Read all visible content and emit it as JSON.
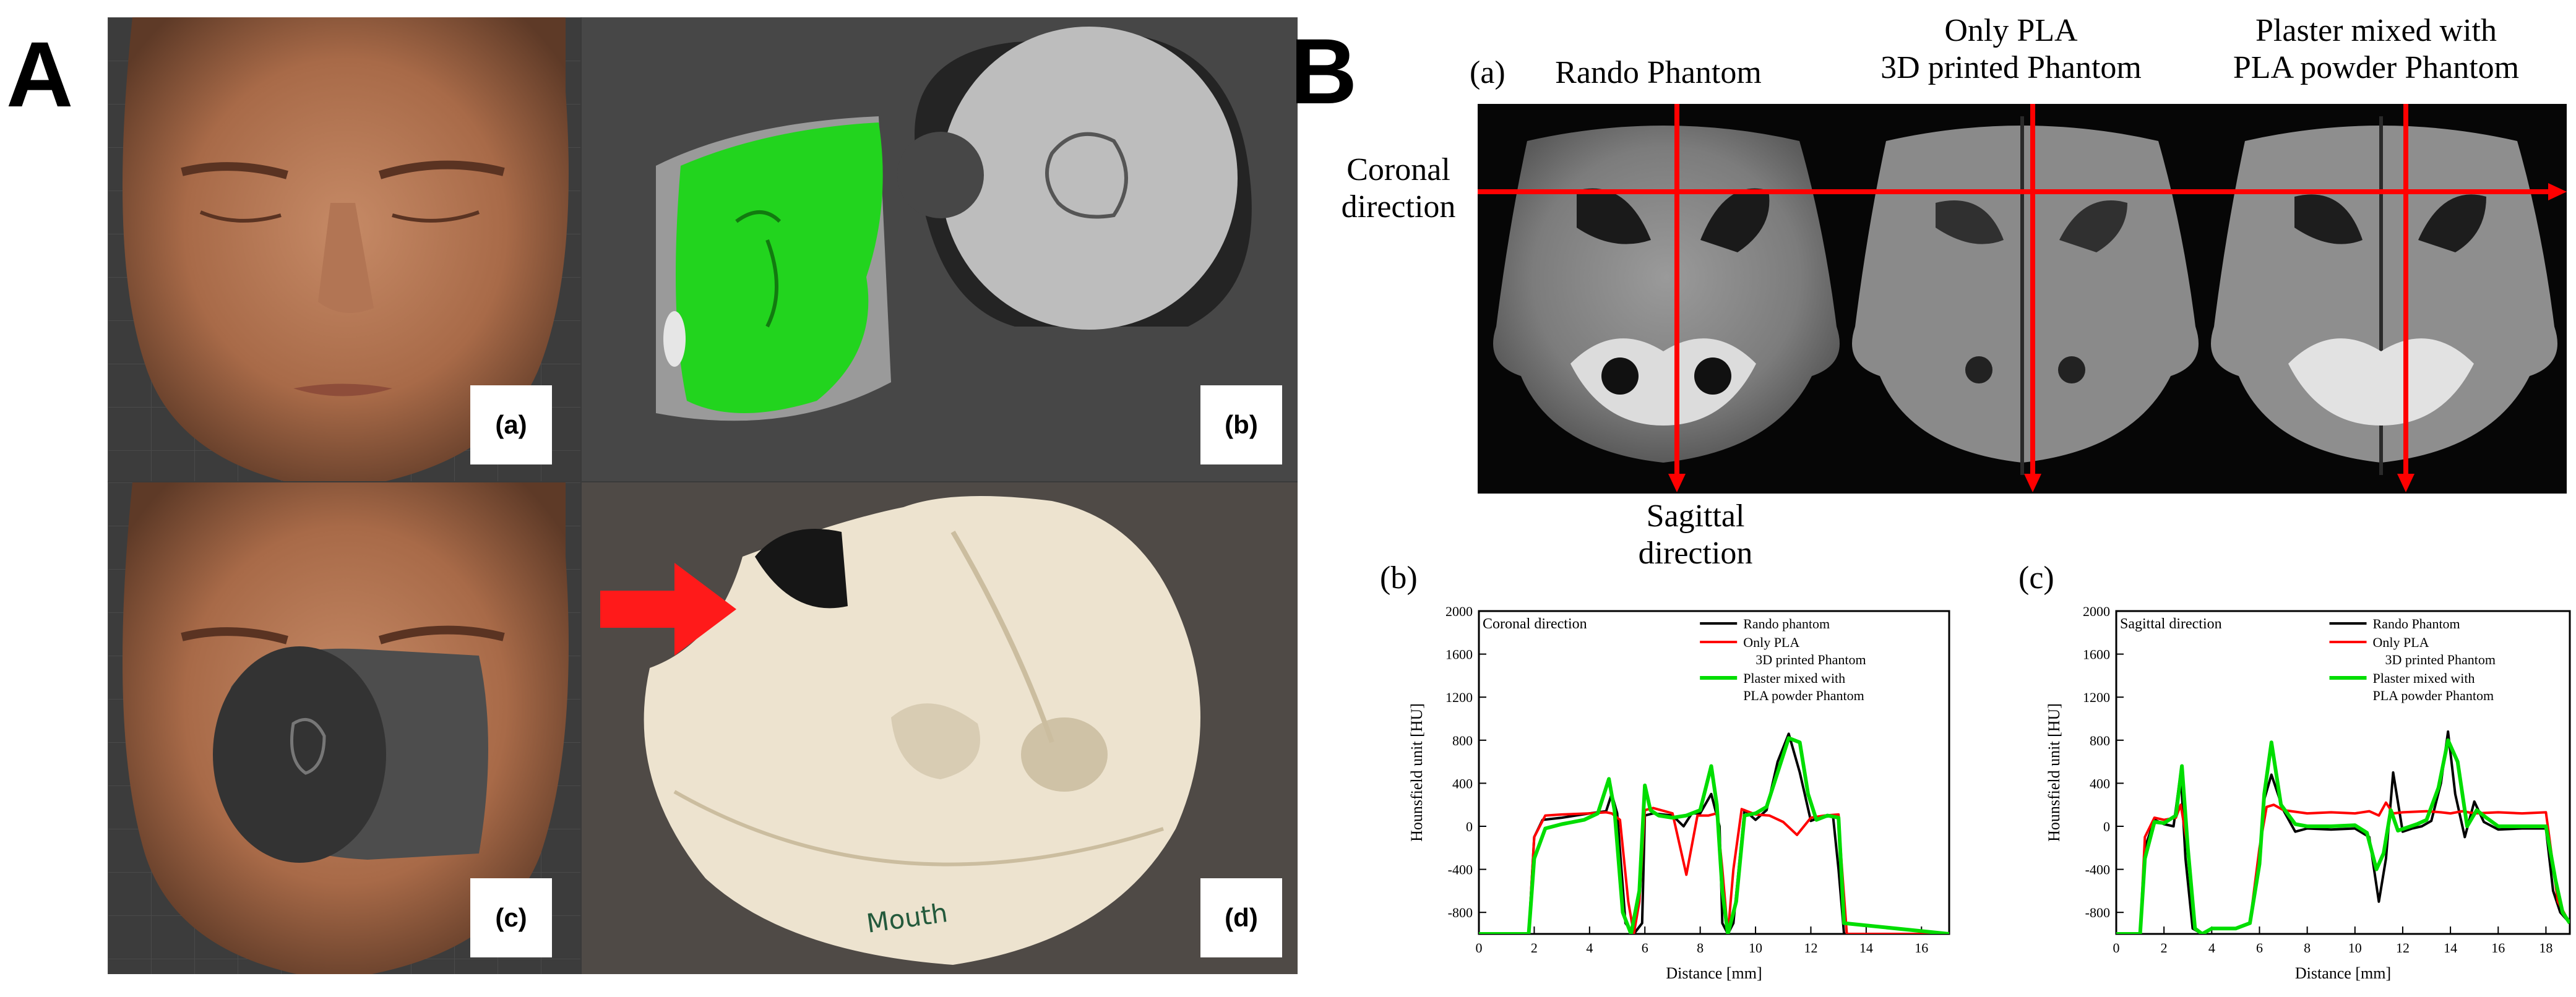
{
  "panel_a": {
    "letter": "A",
    "sub_labels": [
      "(a)",
      "(b)",
      "(c)",
      "(d)"
    ],
    "mouth_text": "Mouth",
    "colors": {
      "face_mesh": "#22d41e",
      "arrow": "#ff1a1a",
      "cylinder": "#bdbdbd",
      "print": "#ede3cf"
    }
  },
  "panel_b": {
    "letter": "B",
    "a_label": "(a)",
    "phantom_titles": [
      "Rando Phantom",
      "Only PLA\n3D printed Phantom",
      "Plaster mixed with\nPLA powder Phantom"
    ],
    "coronal_label": "Coronal\ndirection",
    "sagittal_label": "Sagittal\ndirection",
    "b_label": "(b)",
    "c_label": "(c)"
  },
  "chart_data": [
    {
      "type": "line",
      "title": "Coronal direction",
      "xlabel": "Distance [mm]",
      "ylabel": "Hounsfield unit [HU]",
      "xlim": [
        0,
        17
      ],
      "ylim": [
        -1000,
        2000
      ],
      "xticks": [
        0,
        2,
        4,
        6,
        8,
        10,
        12,
        14,
        16
      ],
      "yticks": [
        -800,
        -400,
        0,
        400,
        800,
        1200,
        1600,
        2000
      ],
      "legend_position": "top-right",
      "series": [
        {
          "name": "Rando phantom",
          "color": "#000000",
          "x": [
            0,
            1.8,
            2.0,
            2.3,
            3.0,
            4.0,
            4.6,
            4.8,
            5.0,
            5.3,
            5.6,
            5.9,
            6.0,
            6.3,
            7.0,
            7.4,
            7.7,
            8.0,
            8.4,
            8.7,
            8.8,
            9.0,
            9.2,
            9.6,
            10.0,
            10.4,
            10.8,
            11.2,
            11.6,
            12.0,
            12.3,
            12.8,
            13.0,
            13.2,
            17
          ],
          "y": [
            -1000,
            -1000,
            -100,
            60,
            80,
            120,
            140,
            300,
            120,
            -900,
            -1000,
            -900,
            100,
            120,
            100,
            0,
            120,
            120,
            300,
            0,
            -900,
            -1000,
            -900,
            150,
            60,
            150,
            600,
            860,
            500,
            50,
            80,
            100,
            -400,
            -1000,
            -1000
          ]
        },
        {
          "name": "Only PLA\n3D printed Phantom",
          "color": "#ff0000",
          "x": [
            0,
            1.8,
            2.0,
            2.4,
            3.0,
            4.0,
            4.6,
            4.8,
            5.1,
            5.4,
            5.6,
            5.8,
            6.0,
            6.3,
            7.0,
            7.5,
            7.9,
            8.3,
            8.6,
            8.8,
            9.0,
            9.2,
            9.5,
            10.0,
            10.5,
            11.0,
            11.5,
            12.0,
            12.5,
            13.0,
            13.1,
            13.3,
            17
          ],
          "y": [
            -1000,
            -1000,
            -100,
            100,
            110,
            120,
            130,
            120,
            60,
            -700,
            -1000,
            -700,
            150,
            170,
            120,
            -450,
            100,
            100,
            120,
            -400,
            -1000,
            -400,
            160,
            110,
            100,
            40,
            -80,
            80,
            100,
            110,
            -300,
            -1000,
            -1000
          ]
        },
        {
          "name": "Plaster mixed with\nPLA powder Phantom",
          "color": "#00dd00",
          "x": [
            0,
            1.8,
            2.0,
            2.4,
            3.0,
            3.8,
            4.3,
            4.7,
            4.9,
            5.2,
            5.5,
            5.8,
            6.0,
            6.2,
            6.5,
            7.0,
            7.5,
            8.0,
            8.4,
            8.6,
            8.8,
            9.0,
            9.3,
            9.6,
            10.0,
            10.4,
            10.8,
            11.2,
            11.6,
            11.9,
            12.2,
            12.6,
            13.0,
            13.2,
            17
          ],
          "y": [
            -1000,
            -1000,
            -300,
            -20,
            20,
            60,
            120,
            440,
            150,
            -800,
            -1000,
            -600,
            380,
            150,
            100,
            80,
            100,
            150,
            560,
            200,
            -600,
            -1000,
            -700,
            100,
            120,
            180,
            500,
            820,
            780,
            300,
            60,
            100,
            80,
            -900,
            -1000
          ]
        }
      ]
    },
    {
      "type": "line",
      "title": "Sagittal direction",
      "xlabel": "Distance [mm]",
      "ylabel": "Hounsfield unit [HU]",
      "xlim": [
        0,
        19
      ],
      "ylim": [
        -1000,
        2000
      ],
      "xticks": [
        0,
        2,
        4,
        6,
        8,
        10,
        12,
        14,
        16,
        18
      ],
      "yticks": [
        -800,
        -400,
        0,
        400,
        800,
        1200,
        1600,
        2000
      ],
      "legend_position": "top-right",
      "series": [
        {
          "name": "Rando Phantom",
          "color": "#000000",
          "x": [
            0,
            1.0,
            1.2,
            1.6,
            2.0,
            2.4,
            2.7,
            2.9,
            3.2,
            3.6,
            4.0,
            5.0,
            5.6,
            6.0,
            6.2,
            6.5,
            7.0,
            7.5,
            8.0,
            9.0,
            10.0,
            10.6,
            11.0,
            11.3,
            11.6,
            12.0,
            12.4,
            12.8,
            13.2,
            13.6,
            13.9,
            14.2,
            14.6,
            15.0,
            15.4,
            16.0,
            17.0,
            18.0,
            18.3,
            18.6,
            19
          ],
          "y": [
            -1000,
            -1000,
            -200,
            60,
            20,
            0,
            500,
            -300,
            -950,
            -1000,
            -950,
            -950,
            -900,
            -300,
            250,
            480,
            150,
            -50,
            -20,
            -30,
            -20,
            -100,
            -700,
            -300,
            500,
            -50,
            -20,
            0,
            50,
            400,
            880,
            300,
            -100,
            230,
            40,
            -30,
            -20,
            -20,
            -600,
            -800,
            -900
          ]
        },
        {
          "name": "Only PLA\n3D printed Phantom",
          "color": "#ff0000",
          "x": [
            0,
            1.0,
            1.2,
            1.6,
            2.0,
            2.5,
            2.7,
            3.0,
            3.3,
            3.6,
            4.0,
            5.0,
            5.6,
            6.0,
            6.3,
            6.6,
            7.0,
            8.0,
            9.0,
            10.0,
            10.6,
            11.0,
            11.3,
            11.6,
            12.0,
            13.0,
            13.6,
            14.0,
            14.5,
            15.0,
            16.0,
            17.0,
            18.0,
            18.5,
            19
          ],
          "y": [
            -1000,
            -1000,
            -100,
            80,
            60,
            80,
            200,
            -200,
            -950,
            -1000,
            -950,
            -950,
            -900,
            -200,
            180,
            200,
            150,
            120,
            130,
            120,
            140,
            100,
            220,
            120,
            130,
            140,
            130,
            120,
            140,
            120,
            130,
            120,
            130,
            -700,
            -900
          ]
        },
        {
          "name": "Plaster mixed with\nPLA powder Phantom",
          "color": "#00dd00",
          "x": [
            0,
            1.0,
            1.2,
            1.6,
            2.0,
            2.5,
            2.75,
            3.0,
            3.3,
            3.6,
            4.0,
            5.0,
            5.6,
            6.0,
            6.2,
            6.5,
            6.9,
            7.5,
            8.0,
            9.0,
            10.0,
            10.5,
            10.9,
            11.2,
            11.5,
            11.8,
            12.2,
            12.6,
            13.0,
            13.5,
            13.9,
            14.3,
            14.7,
            15.1,
            15.5,
            16.0,
            17.0,
            18.0,
            18.4,
            18.7,
            19
          ],
          "y": [
            -1000,
            -1000,
            -300,
            40,
            30,
            100,
            560,
            -200,
            -950,
            -1000,
            -950,
            -950,
            -900,
            -350,
            300,
            780,
            200,
            20,
            0,
            0,
            10,
            -60,
            -400,
            -250,
            150,
            -40,
            -10,
            20,
            60,
            360,
            800,
            600,
            0,
            150,
            80,
            0,
            0,
            0,
            -500,
            -800,
            -900
          ]
        }
      ]
    }
  ]
}
